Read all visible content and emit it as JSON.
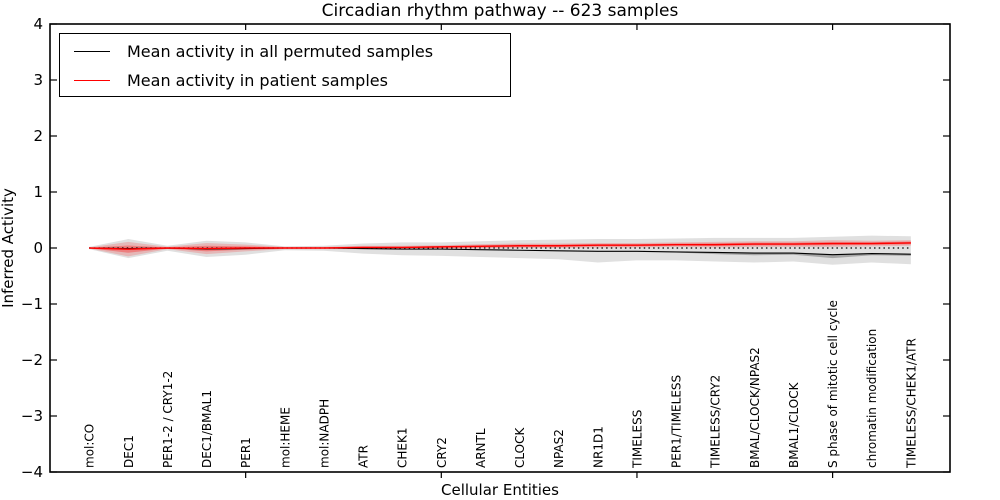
{
  "chart_data": {
    "type": "line",
    "title": "Circadian rhythm pathway -- 623 samples",
    "xlabel": "Cellular Entities",
    "ylabel": "Inferred Activity",
    "ylim": [
      -4,
      4
    ],
    "xlim": [
      0,
      23
    ],
    "yticks": [
      4,
      3,
      2,
      1,
      0,
      -1,
      -2,
      -3,
      -4
    ],
    "ytick_labels": [
      "4",
      "3",
      "2",
      "1",
      "0",
      "−1",
      "−2",
      "−3",
      "−4"
    ],
    "xticks_numeric": [
      5,
      10,
      15,
      20
    ],
    "grid": false,
    "legend_position": "upper left",
    "legend": [
      "Mean activity in all permuted samples",
      "Mean activity in patient samples"
    ],
    "categories": [
      "mol:CO",
      "DEC1",
      "PER1-2 / CRY1-2",
      "DEC1/BMAL1",
      "PER1",
      "mol:HEME",
      "mol:NADPH",
      "ATR",
      "CHEK1",
      "CRY2",
      "ARNTL",
      "CLOCK",
      "NPAS2",
      "NR1D1",
      "TIMELESS",
      "PER1/TIMELESS",
      "TIMELESS/CRY2",
      "BMAL/CLOCK/NPAS2",
      "BMAL1/CLOCK",
      "S phase of mitotic cell cycle",
      "chromatin modification",
      "TIMELESS/CHEK1/ATR"
    ],
    "series": [
      {
        "name": "Mean activity in all permuted samples",
        "color": "#000000",
        "width": 1.1,
        "values": [
          0.0,
          -0.01,
          0.0,
          -0.02,
          -0.01,
          0.0,
          0.0,
          -0.01,
          -0.02,
          -0.02,
          -0.03,
          -0.04,
          -0.05,
          -0.06,
          -0.06,
          -0.07,
          -0.08,
          -0.09,
          -0.09,
          -0.12,
          -0.1,
          -0.11
        ]
      },
      {
        "name": "Mean activity in patient samples",
        "color": "#ff0000",
        "width": 1.4,
        "values": [
          0.0,
          -0.02,
          0.0,
          -0.01,
          0.0,
          0.0,
          0.0,
          0.01,
          0.01,
          0.02,
          0.03,
          0.04,
          0.04,
          0.05,
          0.05,
          0.06,
          0.06,
          0.07,
          0.07,
          0.08,
          0.08,
          0.09
        ]
      }
    ],
    "bands": [
      {
        "name": "permuted-spread",
        "color": "#0000001f",
        "upper": [
          0.02,
          0.16,
          0.04,
          0.13,
          0.1,
          0.03,
          0.04,
          0.08,
          0.1,
          0.1,
          0.12,
          0.14,
          0.15,
          0.16,
          0.16,
          0.17,
          0.18,
          0.18,
          0.18,
          0.2,
          0.22,
          0.21
        ],
        "lower": [
          -0.02,
          -0.18,
          -0.05,
          -0.16,
          -0.12,
          -0.04,
          -0.05,
          -0.1,
          -0.13,
          -0.14,
          -0.16,
          -0.18,
          -0.2,
          -0.26,
          -0.22,
          -0.22,
          -0.24,
          -0.26,
          -0.24,
          -0.3,
          -0.26,
          -0.29
        ]
      },
      {
        "name": "permuted-inner-spread",
        "color": "#00000042",
        "upper": [
          0.0,
          -0.01,
          0.0,
          -0.02,
          -0.01,
          0.0,
          0.0,
          -0.01,
          -0.02,
          -0.02,
          -0.03,
          -0.04,
          -0.05,
          -0.06,
          -0.06,
          -0.07,
          -0.08,
          -0.09,
          -0.09,
          -0.12,
          -0.1,
          -0.11
        ],
        "lower": [
          0.0,
          -0.01,
          0.0,
          -0.02,
          -0.01,
          0.0,
          0.0,
          -0.01,
          -0.02,
          -0.02,
          -0.03,
          -0.04,
          -0.05,
          -0.06,
          -0.06,
          -0.08,
          -0.11,
          -0.13,
          -0.12,
          -0.18,
          -0.13,
          -0.14
        ]
      },
      {
        "name": "patient-spread",
        "color": "#ff00002e",
        "upper": [
          0.01,
          0.11,
          0.02,
          0.09,
          0.06,
          0.02,
          0.02,
          0.04,
          0.04,
          0.05,
          0.07,
          0.08,
          0.08,
          0.09,
          0.09,
          0.1,
          0.11,
          0.12,
          0.12,
          0.14,
          0.13,
          0.14
        ],
        "lower": [
          -0.01,
          -0.15,
          -0.02,
          -0.11,
          -0.06,
          -0.02,
          -0.02,
          -0.02,
          -0.02,
          -0.01,
          -0.01,
          0.0,
          0.0,
          0.01,
          0.01,
          0.02,
          0.01,
          0.02,
          0.02,
          0.02,
          0.03,
          0.04
        ]
      },
      {
        "name": "patient-inner-spread",
        "color": "#ff00004d",
        "upper": [
          0.005,
          0.045,
          0.01,
          0.04,
          0.03,
          0.01,
          0.01,
          0.025,
          0.025,
          0.035,
          0.05,
          0.06,
          0.06,
          0.07,
          0.07,
          0.08,
          0.085,
          0.095,
          0.095,
          0.11,
          0.105,
          0.115
        ],
        "lower": [
          -0.005,
          -0.085,
          -0.01,
          -0.06,
          -0.03,
          -0.01,
          -0.01,
          -0.005,
          -0.005,
          0.005,
          0.01,
          0.02,
          0.02,
          0.03,
          0.03,
          0.04,
          0.035,
          0.045,
          0.045,
          0.05,
          0.055,
          0.065
        ]
      }
    ],
    "zero_line": {
      "y": 0,
      "style": "dotted",
      "color": "#000000"
    },
    "colors": {
      "frame": "#000000",
      "background": "#ffffff",
      "permuted_line": "#000000",
      "patient_line": "#ff0000"
    }
  }
}
